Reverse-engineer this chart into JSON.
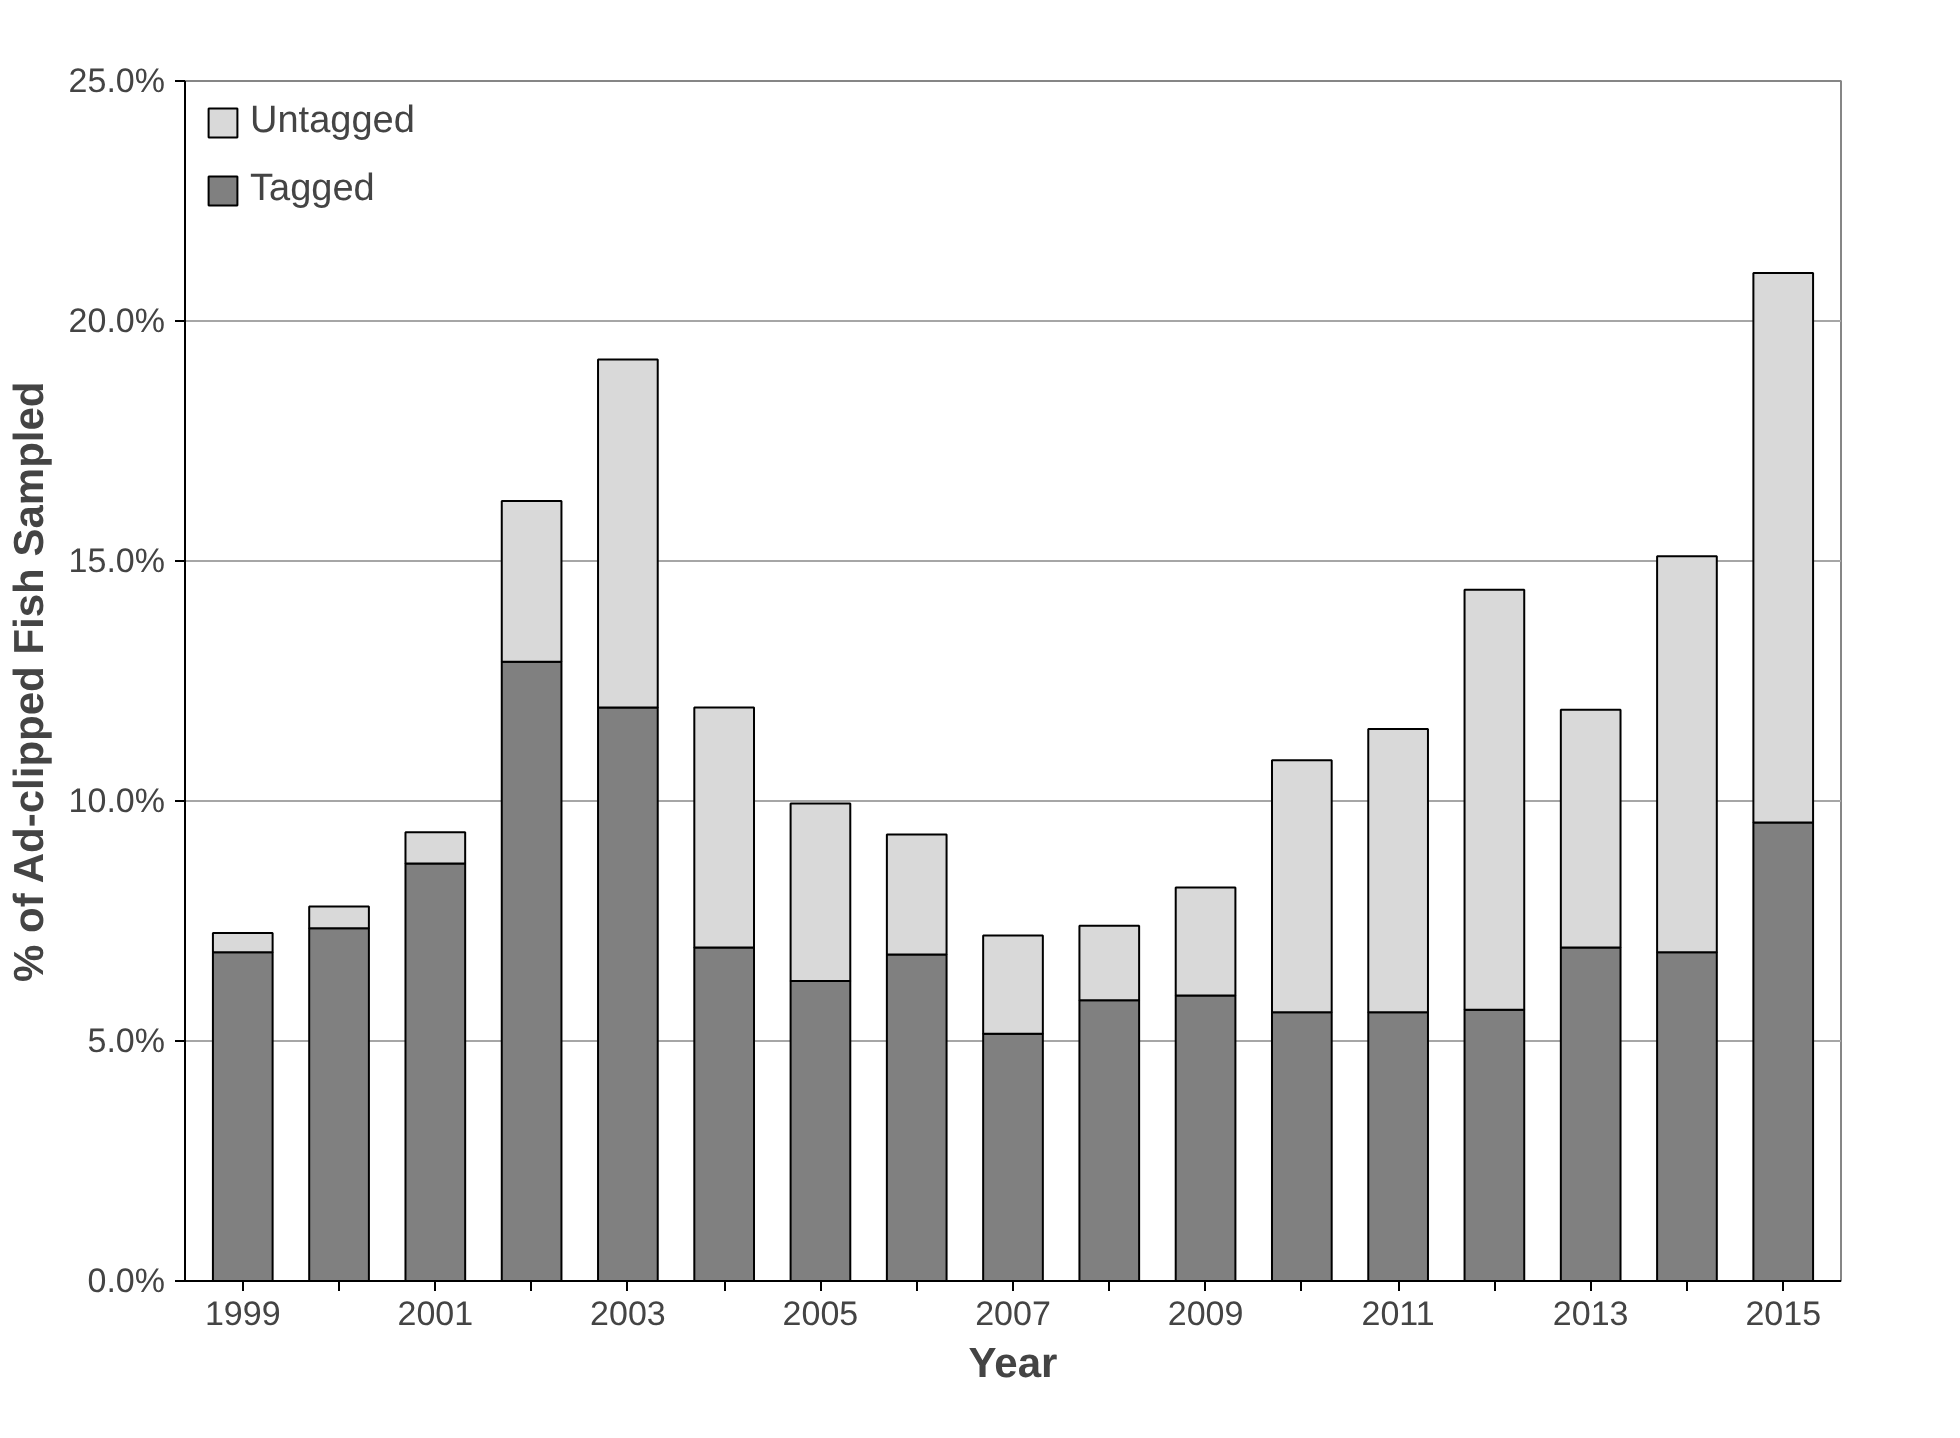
{
  "chart_data": {
    "type": "bar",
    "stacked": true,
    "xlabel": "Year",
    "ylabel": "% of Ad-clipped Fish Sampled",
    "categories": [
      "1999",
      null,
      "2001",
      null,
      "2003",
      null,
      "2005",
      null,
      "2007",
      null,
      "2009",
      null,
      "2011",
      null,
      "2013",
      null,
      "2015"
    ],
    "series": [
      {
        "name": "Tagged",
        "color": "#808080",
        "values": [
          6.85,
          7.35,
          8.7,
          12.9,
          11.95,
          6.95,
          6.25,
          6.8,
          5.15,
          5.85,
          5.95,
          5.6,
          5.6,
          5.65,
          6.95,
          6.85,
          9.55
        ]
      },
      {
        "name": "Untagged",
        "color": "#d9d9d9",
        "values": [
          0.4,
          0.45,
          0.65,
          3.35,
          7.25,
          5.0,
          3.7,
          2.5,
          2.05,
          1.55,
          2.25,
          5.25,
          5.9,
          8.75,
          4.95,
          8.25,
          11.45
        ]
      }
    ],
    "ylim": [
      0,
      25
    ],
    "yticks": [
      {
        "value": 0,
        "label": "0.0%"
      },
      {
        "value": 5,
        "label": "5.0%"
      },
      {
        "value": 10,
        "label": "10.0%"
      },
      {
        "value": 15,
        "label": "15.0%"
      },
      {
        "value": 20,
        "label": "20.0%"
      },
      {
        "value": 25,
        "label": "25.0%"
      }
    ],
    "grid": "y",
    "legend": "top left"
  }
}
